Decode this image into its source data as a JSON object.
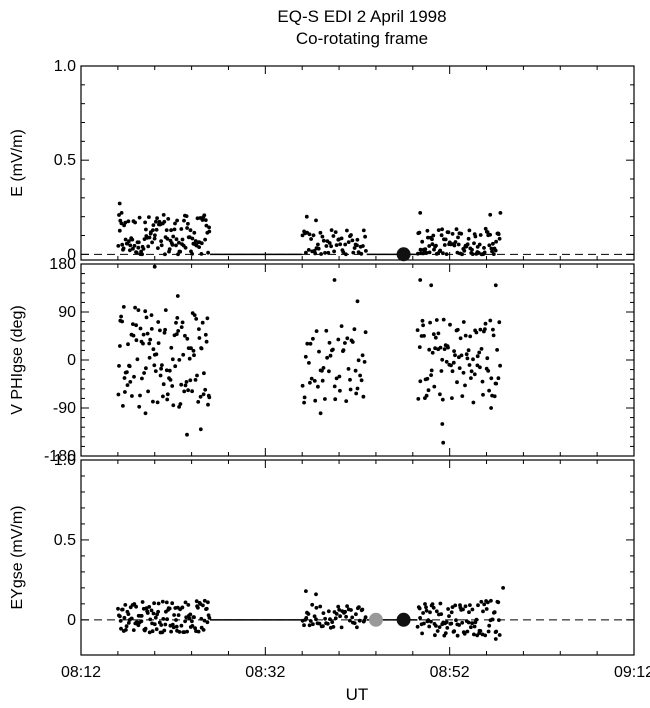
{
  "figure": {
    "title_line1": "EQ-S  EDI     2 April 1998",
    "title_line2": "Co-rotating frame",
    "x_axis_label": "UT",
    "x_tick_labels": [
      "08:12",
      "08:32",
      "08:52",
      "09:12"
    ]
  },
  "chart_data": [
    {
      "type": "scatter",
      "ylabel": "E (mV/m)",
      "y_tick_labels": [
        "0",
        "0.5",
        "1.0"
      ],
      "xlim": [
        "08:12",
        "09:12"
      ],
      "ylim": [
        -0.03,
        1.0
      ],
      "reference_line": 0,
      "markers": [
        {
          "x": "08:47",
          "y": 0,
          "color": "#111111"
        }
      ],
      "segments": [
        {
          "x_start": "08:16",
          "x_end": "08:26",
          "n": 120,
          "y_min": 0,
          "y_max": 0.21,
          "outliers": [
            {
              "x": "08:16.2",
              "y": 0.27
            },
            {
              "x": "08:16.4",
              "y": 0.22
            }
          ]
        },
        {
          "x_start": "08:36",
          "x_end": "08:43",
          "n": 55,
          "y_min": 0,
          "y_max": 0.13,
          "outliers": [
            {
              "x": "08:36.5",
              "y": 0.2
            },
            {
              "x": "08:37.5",
              "y": 0.18
            }
          ]
        },
        {
          "x_start": "08:48.5",
          "x_end": "08:57.5",
          "n": 95,
          "y_min": 0,
          "y_max": 0.14,
          "outliers": [
            {
              "x": "08:48.8",
              "y": 0.22
            },
            {
              "x": "08:56.4",
              "y": 0.21
            },
            {
              "x": "08:57.5",
              "y": 0.22
            }
          ]
        }
      ]
    },
    {
      "type": "scatter",
      "ylabel": "V PHIgse  (deg)",
      "y_tick_labels": [
        "-180",
        "-90",
        "0",
        "90",
        "180"
      ],
      "xlim": [
        "08:12",
        "09:12"
      ],
      "ylim": [
        -180,
        180
      ],
      "segments": [
        {
          "x_start": "08:16",
          "x_end": "08:26",
          "n": 120,
          "y_min": -90,
          "y_max": 100,
          "outliers": [
            {
              "x": "08:19",
              "y": -100
            },
            {
              "x": "08:22.5",
              "y": 120
            },
            {
              "x": "08:23.5",
              "y": -140
            },
            {
              "x": "08:25",
              "y": -130
            },
            {
              "x": "08:20",
              "y": 175
            }
          ]
        },
        {
          "x_start": "08:36",
          "x_end": "08:43",
          "n": 55,
          "y_min": -80,
          "y_max": 70,
          "outliers": [
            {
              "x": "08:38",
              "y": -100
            },
            {
              "x": "08:39.5",
              "y": 150
            },
            {
              "x": "08:42",
              "y": 110
            }
          ]
        },
        {
          "x_start": "08:48.5",
          "x_end": "08:57.5",
          "n": 95,
          "y_min": -80,
          "y_max": 80,
          "outliers": [
            {
              "x": "08:48.8",
              "y": 150
            },
            {
              "x": "08:50",
              "y": 140
            },
            {
              "x": "08:51.2",
              "y": -120
            },
            {
              "x": "08:51.3",
              "y": -155
            },
            {
              "x": "08:57",
              "y": 140
            },
            {
              "x": "08:56.5",
              "y": -90
            }
          ]
        }
      ]
    },
    {
      "type": "scatter",
      "ylabel": "EYgse (mV/m)",
      "y_tick_labels": [
        "0",
        "0.5",
        "1.0"
      ],
      "xlim": [
        "08:12",
        "09:12"
      ],
      "ylim": [
        -0.22,
        1.0
      ],
      "reference_line": 0,
      "markers": [
        {
          "x": "08:44",
          "y": 0,
          "color": "#999999"
        },
        {
          "x": "08:47",
          "y": 0,
          "color": "#111111"
        }
      ],
      "segments": [
        {
          "x_start": "08:16",
          "x_end": "08:26",
          "n": 120,
          "y_min": -0.08,
          "y_max": 0.12,
          "outliers": []
        },
        {
          "x_start": "08:36",
          "x_end": "08:43",
          "n": 55,
          "y_min": -0.05,
          "y_max": 0.1,
          "outliers": [
            {
              "x": "08:36.4",
              "y": 0.18
            },
            {
              "x": "08:37.5",
              "y": 0.16
            }
          ]
        },
        {
          "x_start": "08:48.5",
          "x_end": "08:57.5",
          "n": 95,
          "y_min": -0.1,
          "y_max": 0.12,
          "outliers": [
            {
              "x": "08:57.8",
              "y": 0.2
            },
            {
              "x": "08:57",
              "y": -0.12
            }
          ]
        }
      ]
    }
  ]
}
